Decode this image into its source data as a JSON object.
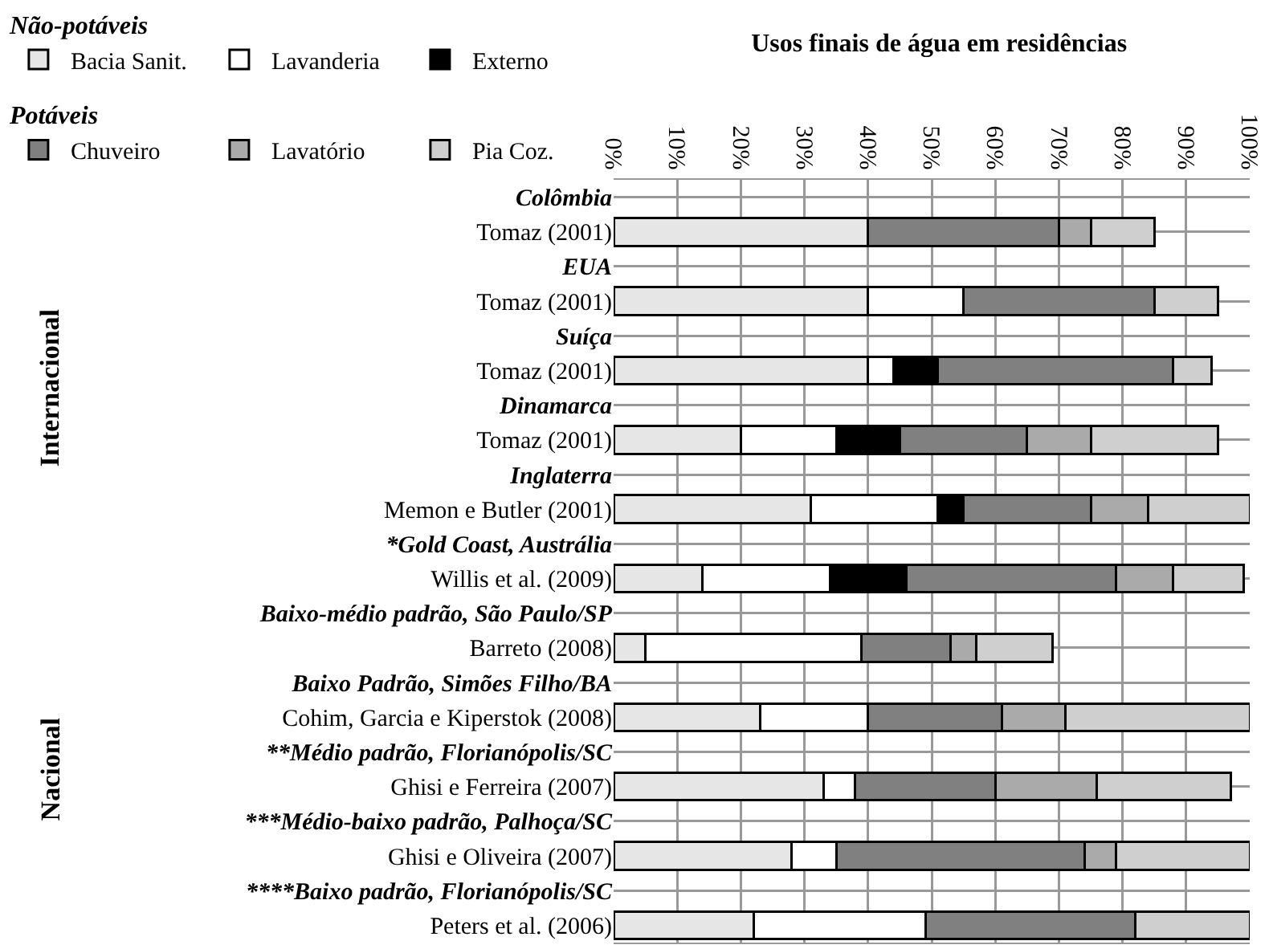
{
  "chart_data": {
    "type": "bar",
    "orientation": "horizontal",
    "stacked": true,
    "title": "Usos finais de água em residências",
    "categories": [
      "Colômbia",
      "Tomaz (2001)",
      "EUA",
      "Tomaz (2001)",
      "Suíça",
      "Tomaz (2001)",
      "Dinamarca",
      "Tomaz (2001)",
      "Inglaterra",
      "Memon e Butler (2001)",
      "*Gold Coast, Austrália",
      "Willis et al. (2009)",
      "Baixo-médio padrão, São Paulo/SP",
      "Barreto (2008)",
      "Baixo Padrão, Simões Filho/BA",
      "Cohim, Garcia e Kiperstok (2008)",
      "**Médio padrão, Florianópolis/SC",
      "Ghisi e Ferreira (2007)",
      "***Médio-baixo padrão, Palhoça/SC",
      "Ghisi e Oliveira (2007)",
      "****Baixo padrão, Florianópolis/SC",
      "Peters et al. (2006)"
    ],
    "series": [
      {
        "name": "Bacia Sanit.",
        "color": "#e6e6e6",
        "values": [
          null,
          40,
          null,
          40,
          null,
          40,
          null,
          20,
          null,
          31,
          null,
          14,
          null,
          5,
          null,
          23,
          null,
          33,
          null,
          28,
          null,
          22
        ]
      },
      {
        "name": "Lavanderia",
        "color": "#ffffff",
        "values": [
          null,
          null,
          null,
          15,
          null,
          4,
          null,
          15,
          null,
          20,
          null,
          20,
          null,
          34,
          null,
          17,
          null,
          5,
          null,
          7,
          null,
          27
        ]
      },
      {
        "name": "Externo",
        "color": "#000000",
        "values": [
          null,
          null,
          null,
          null,
          null,
          7,
          null,
          10,
          null,
          4,
          null,
          12,
          null,
          null,
          null,
          null,
          null,
          null,
          null,
          null,
          null,
          null
        ]
      },
      {
        "name": "Chuveiro",
        "color": "#808080",
        "values": [
          null,
          30,
          null,
          30,
          null,
          37,
          null,
          20,
          null,
          20,
          null,
          33,
          null,
          14,
          null,
          21,
          null,
          22,
          null,
          39,
          null,
          33
        ]
      },
      {
        "name": "Lavatório",
        "color": "#aaaaaa",
        "values": [
          null,
          5,
          null,
          null,
          null,
          null,
          null,
          10,
          null,
          9,
          null,
          9,
          null,
          4,
          null,
          10,
          null,
          16,
          null,
          5,
          null,
          null
        ]
      },
      {
        "name": "Pia Coz.",
        "color": "#cfcfcf",
        "values": [
          null,
          10,
          null,
          10,
          null,
          6,
          null,
          20,
          null,
          16,
          null,
          11,
          null,
          12,
          null,
          29,
          null,
          21,
          null,
          21,
          null,
          18
        ]
      }
    ],
    "xlim": [
      0,
      100
    ],
    "xticks": [
      {
        "value": 0,
        "label": "0%"
      },
      {
        "value": 10,
        "label": "10%"
      },
      {
        "value": 20,
        "label": "20%"
      },
      {
        "value": 30,
        "label": "30%"
      },
      {
        "value": 40,
        "label": "40%"
      },
      {
        "value": 50,
        "label": "50%"
      },
      {
        "value": 60,
        "label": "60%"
      },
      {
        "value": 70,
        "label": "70%"
      },
      {
        "value": 80,
        "label": "80%"
      },
      {
        "value": 90,
        "label": "90%"
      },
      {
        "value": 100,
        "label": "100%"
      }
    ],
    "grid": true,
    "legend": "top left",
    "annotations": [
      "Internacional",
      "Nacional",
      "Não-potáveis",
      "Potáveis"
    ]
  }
}
